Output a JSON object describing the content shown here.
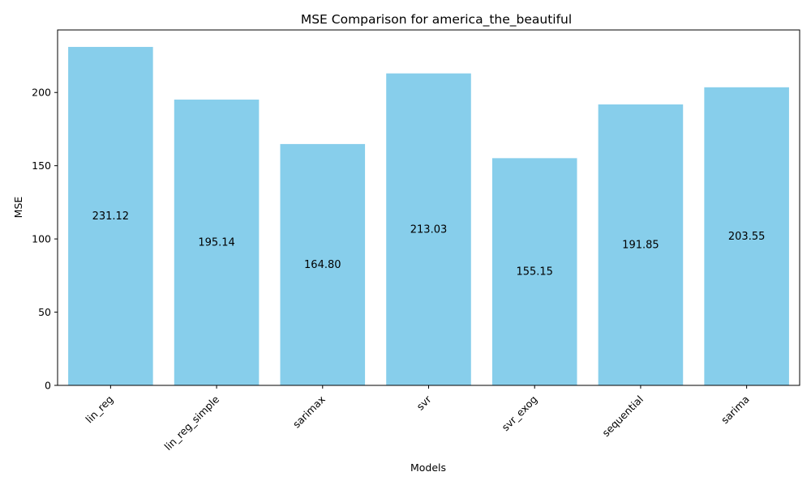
{
  "chart_data": {
    "type": "bar",
    "title": "MSE Comparison for america_the_beautiful",
    "xlabel": "Models",
    "ylabel": "MSE",
    "categories": [
      "lin_reg",
      "lin_reg_simple",
      "sarimax",
      "svr",
      "svr_exog",
      "sequential",
      "sarima"
    ],
    "values": [
      231.12,
      195.14,
      164.8,
      213.03,
      155.15,
      191.85,
      203.55
    ],
    "value_labels": [
      "231.12",
      "195.14",
      "164.80",
      "213.03",
      "155.15",
      "191.85",
      "203.55"
    ],
    "ylim": [
      0,
      242.7
    ],
    "yticks": [
      0,
      50,
      100,
      150,
      200
    ],
    "bar_color": "#87ceeb",
    "grid": false,
    "legend": false
  }
}
